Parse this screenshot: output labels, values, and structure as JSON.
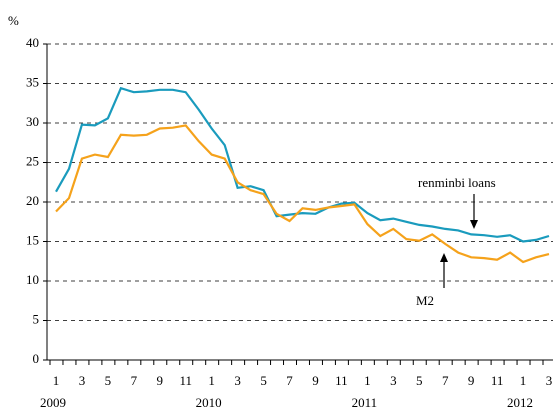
{
  "chart_data": {
    "type": "line",
    "y_label": "%",
    "categories": [
      "1",
      null,
      "3",
      null,
      "5",
      null,
      "7",
      null,
      "9",
      null,
      "11",
      null,
      "1",
      null,
      "3",
      null,
      "5",
      null,
      "7",
      null,
      "9",
      null,
      "11",
      null,
      "1",
      null,
      "3",
      null,
      "5",
      null,
      "7",
      null,
      "9",
      null,
      "11",
      null,
      "1",
      null,
      "3"
    ],
    "year_labels": [
      "2009",
      "2010",
      "2011",
      "2012"
    ],
    "series": [
      {
        "name": "renminbi loans",
        "color": "#1a9bbd",
        "values": [
          21.3,
          24.2,
          29.8,
          29.7,
          30.6,
          34.4,
          33.9,
          34.0,
          34.2,
          34.2,
          33.9,
          31.7,
          29.3,
          27.2,
          21.8,
          22.0,
          21.5,
          18.2,
          18.4,
          18.6,
          18.5,
          19.3,
          19.8,
          19.9,
          18.6,
          17.7,
          17.9,
          17.5,
          17.1,
          16.9,
          16.6,
          16.4,
          15.9,
          15.8,
          15.6,
          15.8,
          15.0,
          15.2,
          15.7
        ]
      },
      {
        "name": "M2",
        "color": "#f5a21b",
        "values": [
          18.8,
          20.5,
          25.5,
          26.0,
          25.7,
          28.5,
          28.4,
          28.5,
          29.3,
          29.4,
          29.7,
          27.7,
          26.0,
          25.5,
          22.5,
          21.5,
          21.0,
          18.5,
          17.6,
          19.2,
          19.0,
          19.3,
          19.5,
          19.7,
          17.2,
          15.7,
          16.6,
          15.3,
          15.1,
          15.9,
          14.7,
          13.6,
          13.0,
          12.9,
          12.7,
          13.6,
          12.4,
          13.0,
          13.4
        ]
      }
    ],
    "ylim": [
      0,
      40
    ],
    "yticks": [
      0,
      5,
      10,
      15,
      20,
      25,
      30,
      35,
      40
    ],
    "grid": true
  }
}
